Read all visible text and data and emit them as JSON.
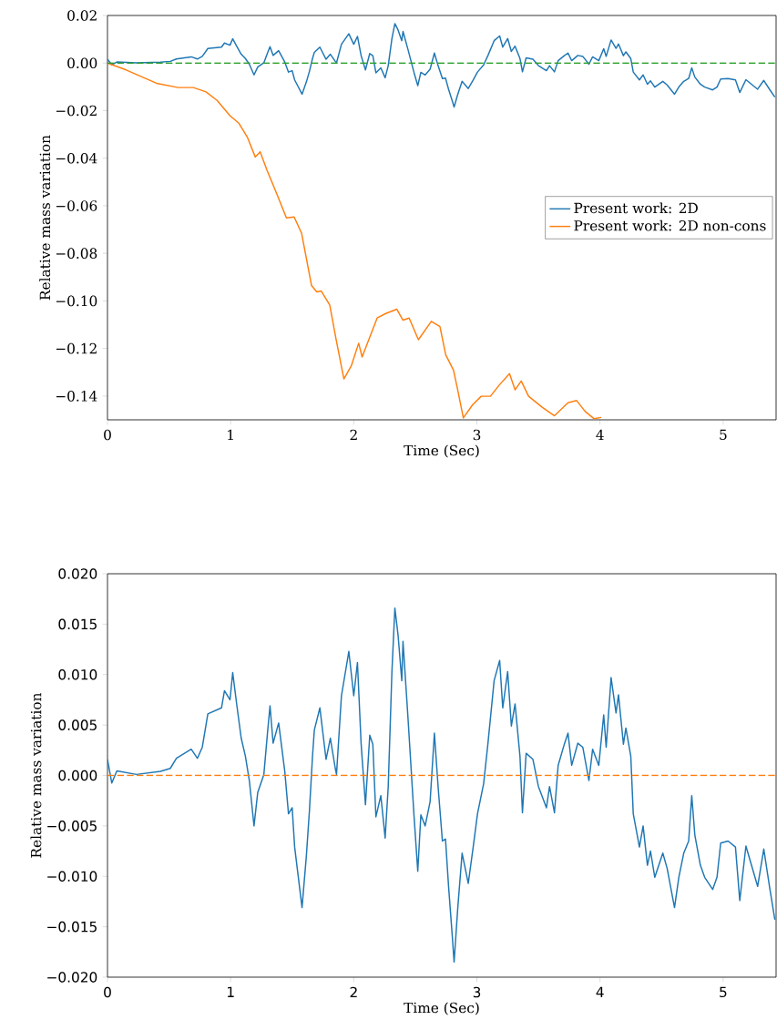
{
  "chart_data": [
    {
      "type": "line",
      "xlabel": "Time (Sec)",
      "ylabel": "Relative mass variation",
      "xlim": [
        0,
        5.43
      ],
      "ylim": [
        -0.15,
        0.02
      ],
      "xticks": [
        0,
        1,
        2,
        3,
        4,
        5
      ],
      "yticks": [
        {
          "value": -0.14,
          "label": "−0.14"
        },
        {
          "value": -0.12,
          "label": "−0.12"
        },
        {
          "value": -0.1,
          "label": "−0.10"
        },
        {
          "value": -0.08,
          "label": "−0.08"
        },
        {
          "value": -0.06,
          "label": "−0.06"
        },
        {
          "value": -0.04,
          "label": "−0.04"
        },
        {
          "value": -0.02,
          "label": "−0.02"
        },
        {
          "value": 0,
          "label": "0.00"
        },
        {
          "value": 0.02,
          "label": "0.02"
        }
      ],
      "legend": "right",
      "ref_lines": [
        {
          "axis": "y",
          "value": 0,
          "color": "#2ca02c",
          "line_style": "dashed"
        }
      ],
      "series": [
        {
          "name": "Present work: 2D",
          "color": "#1f77b4",
          "x": [
            0,
            0.035,
            0.076,
            0.236,
            0.43,
            0.51,
            0.56,
            0.68,
            0.73,
            0.77,
            0.815,
            0.926,
            0.95,
            0.995,
            1.017,
            1.05,
            1.086,
            1.12,
            1.152,
            1.19,
            1.22,
            1.27,
            1.3,
            1.32,
            1.345,
            1.39,
            1.44,
            1.47,
            1.5,
            1.52,
            1.58,
            1.615,
            1.64,
            1.665,
            1.68,
            1.725,
            1.775,
            1.81,
            1.85,
            1.86,
            1.9,
            1.96,
            2.0,
            2.03,
            2.06,
            2.095,
            2.13,
            2.155,
            2.18,
            2.22,
            2.255,
            2.28,
            2.31,
            2.334,
            2.36,
            2.39,
            2.4,
            2.44,
            2.49,
            2.52,
            2.545,
            2.58,
            2.62,
            2.655,
            2.685,
            2.72,
            2.745,
            2.77,
            2.8,
            2.815,
            2.845,
            2.88,
            2.93,
            2.97,
            3.005,
            3.055,
            3.09,
            3.14,
            3.185,
            3.21,
            3.25,
            3.28,
            3.31,
            3.35,
            3.37,
            3.4,
            3.455,
            3.5,
            3.565,
            3.59,
            3.63,
            3.66,
            3.71,
            3.74,
            3.77,
            3.82,
            3.86,
            3.91,
            3.94,
            3.99,
            4.03,
            4.05,
            4.09,
            4.13,
            4.15,
            4.19,
            4.21,
            4.25,
            4.27,
            4.32,
            4.35,
            4.385,
            4.41,
            4.445,
            4.51,
            4.545,
            4.605,
            4.64,
            4.68,
            4.72,
            4.745,
            4.77,
            4.815,
            4.85,
            4.915,
            4.95,
            4.98,
            5.04,
            5.1,
            5.135,
            5.185,
            5.28,
            5.33,
            5.38,
            5.42
          ],
          "values": [
            0.0016,
            -0.00075,
            0.00045,
            0.0001,
            0.0004,
            0.0007,
            0.0017,
            0.0026,
            0.0017,
            0.0028,
            0.0061,
            0.0067,
            0.0084,
            0.0075,
            0.0102,
            0.007,
            0.0037,
            0.0019,
            -0.0005,
            -0.005,
            -0.0017,
            0.0001,
            0.0043,
            0.0069,
            0.0032,
            0.0052,
            0.0004,
            -0.0038,
            -0.0032,
            -0.0071,
            -0.0131,
            -0.008,
            -0.0035,
            0.0019,
            0.0045,
            0.0067,
            0.0016,
            0.0037,
            0.0007,
            0.0001,
            0.0079,
            0.0123,
            0.0079,
            0.0112,
            0.0031,
            -0.0029,
            0.004,
            0.0031,
            -0.0041,
            -0.002,
            -0.0062,
            -0.0011,
            0.0103,
            0.0166,
            0.0139,
            0.0094,
            0.0133,
            0.0058,
            -0.0041,
            -0.0095,
            -0.0039,
            -0.005,
            -0.0026,
            0.0042,
            -0.0011,
            -0.0065,
            -0.0063,
            -0.011,
            -0.0159,
            -0.0185,
            -0.0131,
            -0.0077,
            -0.0107,
            -0.0071,
            -0.0038,
            -0.0008,
            0.0032,
            0.0094,
            0.0114,
            0.0067,
            0.0103,
            0.0049,
            0.0071,
            0.0019,
            -0.0037,
            0.0022,
            0.0016,
            -0.0011,
            -0.0032,
            -0.0011,
            -0.0037,
            0.001,
            0.0031,
            0.0042,
            0.001,
            0.0032,
            0.0028,
            -0.0005,
            0.0026,
            0.001,
            0.006,
            0.0028,
            0.0097,
            0.0062,
            0.008,
            0.0031,
            0.0047,
            0.0019,
            -0.0038,
            -0.0071,
            -0.005,
            -0.0089,
            -0.0075,
            -0.0101,
            -0.0077,
            -0.0092,
            -0.0131,
            -0.0101,
            -0.0077,
            -0.0065,
            -0.002,
            -0.0059,
            -0.0089,
            -0.0101,
            -0.0113,
            -0.0101,
            -0.0067,
            -0.0065,
            -0.0071,
            -0.0124,
            -0.007,
            -0.011,
            -0.0073,
            -0.0113,
            -0.0143
          ]
        },
        {
          "name": "Present work: 2D non-cons",
          "color": "#ff7f0e",
          "x": [
            0,
            0.152,
            0.398,
            0.574,
            0.697,
            0.8,
            0.89,
            0.996,
            1.067,
            1.137,
            1.2,
            1.24,
            1.295,
            1.383,
            1.453,
            1.516,
            1.576,
            1.657,
            1.7,
            1.735,
            1.805,
            1.857,
            1.92,
            1.98,
            2.04,
            2.068,
            2.19,
            2.26,
            2.35,
            2.4,
            2.45,
            2.525,
            2.63,
            2.7,
            2.747,
            2.81,
            2.84,
            2.89,
            2.965,
            3.035,
            3.11,
            3.18,
            3.265,
            3.31,
            3.36,
            3.42,
            3.53,
            3.63,
            3.74,
            3.81,
            3.88,
            3.95,
            4.01
          ],
          "values": [
            0,
            -0.0029,
            -0.0085,
            -0.0103,
            -0.0103,
            -0.0121,
            -0.0157,
            -0.0222,
            -0.0253,
            -0.0313,
            -0.0395,
            -0.0373,
            -0.045,
            -0.056,
            -0.0651,
            -0.0647,
            -0.0715,
            -0.0935,
            -0.0962,
            -0.0958,
            -0.1017,
            -0.1163,
            -0.1328,
            -0.1273,
            -0.1178,
            -0.1236,
            -0.1072,
            -0.1053,
            -0.1035,
            -0.1081,
            -0.1072,
            -0.1163,
            -0.1086,
            -0.1108,
            -0.1227,
            -0.1291,
            -0.1364,
            -0.1492,
            -0.1437,
            -0.1401,
            -0.1401,
            -0.1355,
            -0.1306,
            -0.1374,
            -0.1337,
            -0.1401,
            -0.1447,
            -0.1483,
            -0.1428,
            -0.1419,
            -0.1465,
            -0.1495,
            -0.149
          ]
        }
      ]
    },
    {
      "type": "line",
      "xlabel": "Time (Sec)",
      "ylabel": "Relative mass variation",
      "xlim": [
        0,
        5.43
      ],
      "ylim": [
        -0.02,
        0.02
      ],
      "xticks": [
        0,
        1,
        2,
        3,
        4,
        5
      ],
      "yticks": [
        {
          "value": -0.02,
          "label": "−0.020"
        },
        {
          "value": -0.015,
          "label": "−0.015"
        },
        {
          "value": -0.01,
          "label": "−0.010"
        },
        {
          "value": -0.005,
          "label": "−0.005"
        },
        {
          "value": 0,
          "label": "0.000"
        },
        {
          "value": 0.005,
          "label": "0.005"
        },
        {
          "value": 0.01,
          "label": "0.010"
        },
        {
          "value": 0.015,
          "label": "0.015"
        },
        {
          "value": 0.02,
          "label": "0.020"
        }
      ],
      "ref_lines": [
        {
          "axis": "y",
          "value": 0,
          "color": "#ff7f0e",
          "line_style": "dashed"
        }
      ],
      "series": [
        {
          "color": "#1f77b4",
          "x": [
            0,
            0.035,
            0.076,
            0.236,
            0.43,
            0.51,
            0.56,
            0.68,
            0.73,
            0.77,
            0.815,
            0.926,
            0.95,
            0.995,
            1.017,
            1.05,
            1.086,
            1.12,
            1.152,
            1.19,
            1.22,
            1.27,
            1.3,
            1.32,
            1.345,
            1.39,
            1.44,
            1.47,
            1.5,
            1.52,
            1.58,
            1.615,
            1.64,
            1.665,
            1.68,
            1.725,
            1.775,
            1.81,
            1.85,
            1.86,
            1.9,
            1.96,
            2.0,
            2.03,
            2.06,
            2.095,
            2.13,
            2.155,
            2.18,
            2.22,
            2.255,
            2.28,
            2.31,
            2.334,
            2.36,
            2.39,
            2.4,
            2.44,
            2.49,
            2.52,
            2.545,
            2.58,
            2.62,
            2.655,
            2.685,
            2.72,
            2.745,
            2.77,
            2.8,
            2.815,
            2.845,
            2.88,
            2.93,
            2.97,
            3.005,
            3.055,
            3.09,
            3.14,
            3.185,
            3.21,
            3.25,
            3.28,
            3.31,
            3.35,
            3.37,
            3.4,
            3.455,
            3.5,
            3.565,
            3.59,
            3.63,
            3.66,
            3.71,
            3.74,
            3.77,
            3.82,
            3.86,
            3.91,
            3.94,
            3.99,
            4.03,
            4.05,
            4.09,
            4.13,
            4.15,
            4.19,
            4.21,
            4.25,
            4.27,
            4.32,
            4.35,
            4.385,
            4.41,
            4.445,
            4.51,
            4.545,
            4.605,
            4.64,
            4.68,
            4.72,
            4.745,
            4.77,
            4.815,
            4.85,
            4.915,
            4.95,
            4.98,
            5.04,
            5.1,
            5.135,
            5.185,
            5.28,
            5.33,
            5.38,
            5.42
          ],
          "values": [
            0.0016,
            -0.00075,
            0.00045,
            0.0001,
            0.0004,
            0.0007,
            0.0017,
            0.0026,
            0.0017,
            0.0028,
            0.0061,
            0.0067,
            0.0084,
            0.0075,
            0.0102,
            0.007,
            0.0037,
            0.0019,
            -0.0005,
            -0.005,
            -0.0017,
            0.0001,
            0.0043,
            0.0069,
            0.0032,
            0.0052,
            0.0004,
            -0.0038,
            -0.0032,
            -0.0071,
            -0.0131,
            -0.008,
            -0.0035,
            0.0019,
            0.0045,
            0.0067,
            0.0016,
            0.0037,
            0.0007,
            0.0001,
            0.0079,
            0.0123,
            0.0079,
            0.0112,
            0.0031,
            -0.0029,
            0.004,
            0.0031,
            -0.0041,
            -0.002,
            -0.0062,
            -0.0011,
            0.0103,
            0.0166,
            0.0139,
            0.0094,
            0.0133,
            0.0058,
            -0.0041,
            -0.0095,
            -0.0039,
            -0.005,
            -0.0026,
            0.0042,
            -0.0011,
            -0.0065,
            -0.0063,
            -0.011,
            -0.0159,
            -0.0185,
            -0.0131,
            -0.0077,
            -0.0107,
            -0.0071,
            -0.0038,
            -0.0008,
            0.0032,
            0.0094,
            0.0114,
            0.0067,
            0.0103,
            0.0049,
            0.0071,
            0.0019,
            -0.0037,
            0.0022,
            0.0016,
            -0.0011,
            -0.0032,
            -0.0011,
            -0.0037,
            0.001,
            0.0031,
            0.0042,
            0.001,
            0.0032,
            0.0028,
            -0.0005,
            0.0026,
            0.001,
            0.006,
            0.0028,
            0.0097,
            0.0062,
            0.008,
            0.0031,
            0.0047,
            0.0019,
            -0.0038,
            -0.0071,
            -0.005,
            -0.0089,
            -0.0075,
            -0.0101,
            -0.0077,
            -0.0092,
            -0.0131,
            -0.0101,
            -0.0077,
            -0.0065,
            -0.002,
            -0.0059,
            -0.0089,
            -0.0101,
            -0.0113,
            -0.0101,
            -0.0067,
            -0.0065,
            -0.0071,
            -0.0124,
            -0.007,
            -0.011,
            -0.0073,
            -0.0113,
            -0.0143
          ]
        }
      ]
    }
  ]
}
